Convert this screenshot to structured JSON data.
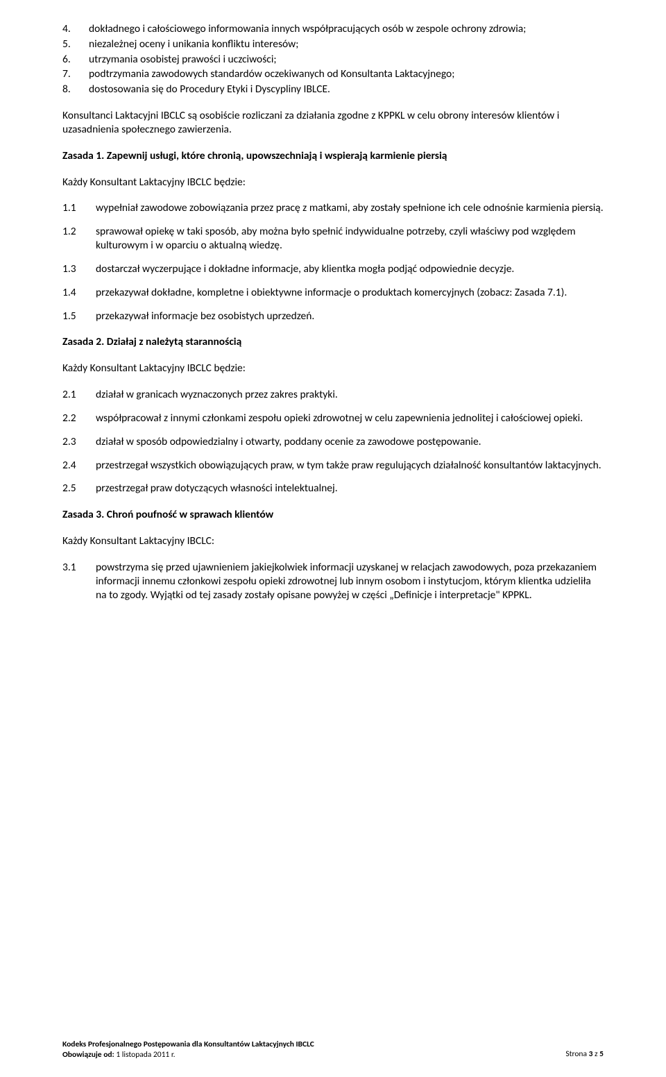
{
  "topList": [
    {
      "n": "4.",
      "t": "dokładnego i całościowego informowania innych współpracujących osób w zespole ochrony zdrowia;"
    },
    {
      "n": "5.",
      "t": "niezależnej oceny i unikania konfliktu interesów;"
    },
    {
      "n": "6.",
      "t": "utrzymania osobistej prawości i uczciwości;"
    },
    {
      "n": "7.",
      "t": "podtrzymania zawodowych standardów oczekiwanych od Konsultanta Laktacyjnego;"
    },
    {
      "n": "8.",
      "t": "dostosowania się do Procedury Etyki i Dyscypliny IBLCE."
    }
  ],
  "para1": "Konsultanci Laktacyjni IBCLC są osobiście rozliczani za działania zgodne z KPPKL w celu obrony interesów klientów i uzasadnienia społecznego zawierzenia.",
  "z1": {
    "title": "Zasada 1. Zapewnij usługi, które chronią, upowszechniają i wspierają karmienie piersią",
    "intro": "Każdy Konsultant Laktacyjny IBCLC będzie:",
    "items": [
      {
        "n": "1.1",
        "t": "wypełniał zawodowe zobowiązania przez pracę z matkami, aby zostały spełnione ich cele odnośnie karmienia piersią."
      },
      {
        "n": "1.2",
        "t": "sprawował opiekę w taki sposób, aby można było spełnić indywidualne potrzeby, czyli właściwy pod względem kulturowym i w oparciu o aktualną wiedzę."
      },
      {
        "n": "1.3",
        "t": "dostarczał wyczerpujące i dokładne informacje, aby klientka mogła podjąć odpowiednie decyzje."
      },
      {
        "n": "1.4",
        "t": "przekazywał dokładne, kompletne i obiektywne informacje o produktach komercyjnych (zobacz: Zasada 7.1)."
      },
      {
        "n": "1.5",
        "t": "przekazywał informacje bez osobistych uprzedzeń."
      }
    ]
  },
  "z2": {
    "title": "Zasada 2. Działaj z należytą starannością",
    "intro": "Każdy Konsultant Laktacyjny IBCLC będzie:",
    "items": [
      {
        "n": "2.1",
        "t": "działał w granicach wyznaczonych przez zakres praktyki."
      },
      {
        "n": "2.2",
        "t": "współpracował z innymi członkami zespołu opieki zdrowotnej w celu zapewnienia jednolitej i całościowej opieki."
      },
      {
        "n": "2.3",
        "t": "działał w sposób odpowiedzialny i otwarty, poddany ocenie za zawodowe postępowanie."
      },
      {
        "n": "2.4",
        "t": "przestrzegał wszystkich obowiązujących praw, w tym także praw regulujących działalność konsultantów laktacyjnych."
      },
      {
        "n": "2.5",
        "t": "przestrzegał praw dotyczących własności intelektualnej."
      }
    ]
  },
  "z3": {
    "title": "Zasada 3. Chroń poufność w sprawach klientów",
    "intro": "Każdy Konsultant Laktacyjny IBCLC:",
    "items": [
      {
        "n": "3.1",
        "t": "powstrzyma się przed ujawnieniem jakiejkolwiek informacji uzyskanej w relacjach zawodowych, poza przekazaniem informacji innemu członkowi zespołu opieki zdrowotnej lub innym osobom i instytucjom, którym klientka udzieliła na to zgody. Wyjątki od tej zasady zostały opisane powyżej w części „Definicje i interpretacje\" KPPKL."
      }
    ]
  },
  "footer": {
    "line1": "Kodeks Profesjonalnego Postępowania dla Konsultantów Laktacyjnych IBCLC",
    "line2": "Obowiązuje od: 1 listopada 2011 r.",
    "page": "Strona 3 z 5"
  }
}
